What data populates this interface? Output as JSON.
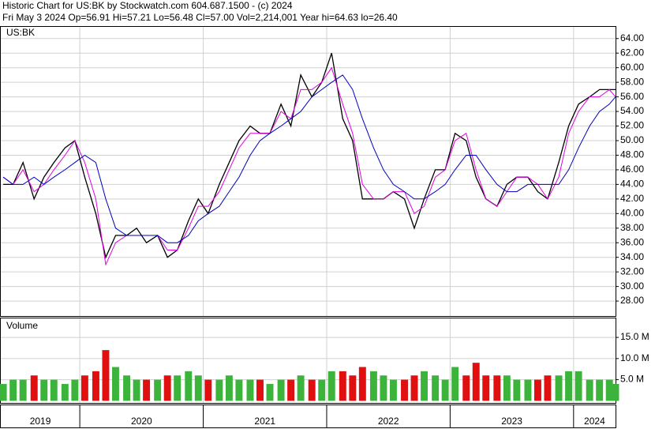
{
  "chart_data": [
    {
      "type": "line",
      "title": "Historic Chart for US:BK by Stockwatch.com 604.687.1500 - (c) 2024",
      "subtitle": "Fri May  3 2024  Op=56.91  Hi=57.21  Lo=56.48  Cl=57.00  Vol=2,214,001  Year hi=64.63  lo=26.40",
      "label": "US:BK",
      "x": [
        2019.38,
        2019.46,
        2019.54,
        2019.63,
        2019.71,
        2019.79,
        2019.88,
        2019.96,
        2020.04,
        2020.13,
        2020.21,
        2020.29,
        2020.38,
        2020.46,
        2020.54,
        2020.63,
        2020.71,
        2020.79,
        2020.88,
        2020.96,
        2021.04,
        2021.13,
        2021.21,
        2021.29,
        2021.38,
        2021.46,
        2021.54,
        2021.63,
        2021.71,
        2021.79,
        2021.88,
        2021.96,
        2022.04,
        2022.13,
        2022.21,
        2022.29,
        2022.38,
        2022.46,
        2022.54,
        2022.63,
        2022.71,
        2022.79,
        2022.88,
        2022.96,
        2023.04,
        2023.13,
        2023.21,
        2023.29,
        2023.38,
        2023.46,
        2023.54,
        2023.63,
        2023.71,
        2023.79,
        2023.88,
        2023.96,
        2024.04,
        2024.13,
        2024.21,
        2024.29,
        2024.34
      ],
      "series": [
        {
          "color": "#000000",
          "values": [
            44,
            44,
            47,
            42,
            45,
            47,
            49,
            50,
            45,
            40,
            34,
            37,
            37,
            38,
            36,
            37,
            34,
            35,
            39,
            42,
            40,
            44,
            47,
            50,
            52,
            51,
            51,
            55,
            52,
            59,
            56,
            58,
            62,
            53,
            50,
            42,
            42,
            42,
            43,
            42,
            38,
            42,
            46,
            46,
            51,
            50,
            45,
            42,
            41,
            44,
            45,
            45,
            43,
            42,
            47,
            52,
            55,
            56,
            57,
            57,
            57
          ]
        },
        {
          "color": "#e000e0",
          "values": [
            45,
            44,
            46,
            43,
            44,
            46,
            48,
            50,
            47,
            42,
            33,
            36,
            37,
            37,
            37,
            37,
            35,
            35,
            38,
            41,
            41,
            43,
            46,
            49,
            51,
            51,
            51,
            54,
            53,
            57,
            57,
            58,
            60,
            55,
            51,
            44,
            42,
            42,
            43,
            43,
            40,
            41,
            45,
            46,
            50,
            51,
            46,
            42,
            41,
            43,
            45,
            45,
            44,
            42,
            45,
            51,
            54,
            56,
            56,
            57,
            56
          ]
        },
        {
          "color": "#0000c0",
          "values": [
            45,
            44,
            44,
            45,
            44,
            45,
            46,
            47,
            48,
            47,
            42,
            38,
            37,
            37,
            37,
            37,
            36,
            36,
            37,
            39,
            40,
            41,
            43,
            45,
            48,
            50,
            51,
            52,
            53,
            54,
            56,
            57,
            58,
            59,
            57,
            53,
            49,
            46,
            44,
            43,
            42,
            42,
            43,
            44,
            46,
            48,
            48,
            46,
            44,
            43,
            43,
            44,
            44,
            44,
            44,
            46,
            49,
            52,
            54,
            55,
            56
          ]
        }
      ],
      "xlim": [
        2019.36,
        2024.34
      ],
      "xticks": [
        {
          "value": 2019,
          "label": "2019"
        },
        {
          "value": 2020,
          "label": "2020"
        },
        {
          "value": 2021,
          "label": "2021"
        },
        {
          "value": 2022,
          "label": "2022"
        },
        {
          "value": 2023,
          "label": "2023"
        },
        {
          "value": 2024,
          "label": "2024"
        }
      ],
      "ylim": [
        25.95,
        65.6
      ],
      "yticks": [
        {
          "value": 28,
          "label": "28.00"
        },
        {
          "value": 30,
          "label": "30.00"
        },
        {
          "value": 32,
          "label": "32.00"
        },
        {
          "value": 34,
          "label": "34.00"
        },
        {
          "value": 36,
          "label": "36.00"
        },
        {
          "value": 38,
          "label": "38.00"
        },
        {
          "value": 40,
          "label": "40.00"
        },
        {
          "value": 42,
          "label": "42.00"
        },
        {
          "value": 44,
          "label": "44.00"
        },
        {
          "value": 46,
          "label": "46.00"
        },
        {
          "value": 48,
          "label": "48.00"
        },
        {
          "value": 50,
          "label": "50.00"
        },
        {
          "value": 52,
          "label": "52.00"
        },
        {
          "value": 54,
          "label": "54.00"
        },
        {
          "value": 56,
          "label": "56.00"
        },
        {
          "value": 58,
          "label": "58.00"
        },
        {
          "value": 60,
          "label": "60.00"
        },
        {
          "value": 62,
          "label": "62.00"
        },
        {
          "value": 64,
          "label": "64.00"
        }
      ],
      "grid": true
    },
    {
      "type": "bar",
      "title": "Volume",
      "x": [
        2019.38,
        2019.46,
        2019.54,
        2019.63,
        2019.71,
        2019.79,
        2019.88,
        2019.96,
        2020.04,
        2020.13,
        2020.21,
        2020.29,
        2020.38,
        2020.46,
        2020.54,
        2020.63,
        2020.71,
        2020.79,
        2020.88,
        2020.96,
        2021.04,
        2021.13,
        2021.21,
        2021.29,
        2021.38,
        2021.46,
        2021.54,
        2021.63,
        2021.71,
        2021.79,
        2021.88,
        2021.96,
        2022.04,
        2022.13,
        2022.21,
        2022.29,
        2022.38,
        2022.46,
        2022.54,
        2022.63,
        2022.71,
        2022.79,
        2022.88,
        2022.96,
        2023.04,
        2023.13,
        2023.21,
        2023.29,
        2023.38,
        2023.46,
        2023.54,
        2023.63,
        2023.71,
        2023.79,
        2023.88,
        2023.96,
        2024.04,
        2024.13,
        2024.21,
        2024.29,
        2024.34
      ],
      "values": [
        4,
        5,
        5,
        6,
        5,
        5,
        4,
        5,
        6,
        7,
        12,
        8,
        6,
        5,
        5,
        5,
        6,
        6,
        7,
        6,
        5,
        5,
        6,
        5,
        5,
        5,
        4,
        5,
        5,
        6,
        5,
        5,
        7,
        7,
        6,
        8,
        7,
        6,
        5,
        5,
        6,
        7,
        6,
        5,
        8,
        6,
        9,
        6,
        6,
        6,
        5,
        5,
        5,
        6,
        6,
        7,
        7,
        5,
        5,
        5,
        4
      ],
      "up_color": "#3cb43c",
      "down_color": "#e01010",
      "xlim": [
        2019.36,
        2024.34
      ],
      "ylim": [
        -0.5,
        19.5
      ],
      "yticks": [
        {
          "value": 5,
          "label": "5.0 M"
        },
        {
          "value": 10,
          "label": "10.0 M"
        },
        {
          "value": 15,
          "label": "15.0 M"
        }
      ],
      "grid": true
    }
  ]
}
